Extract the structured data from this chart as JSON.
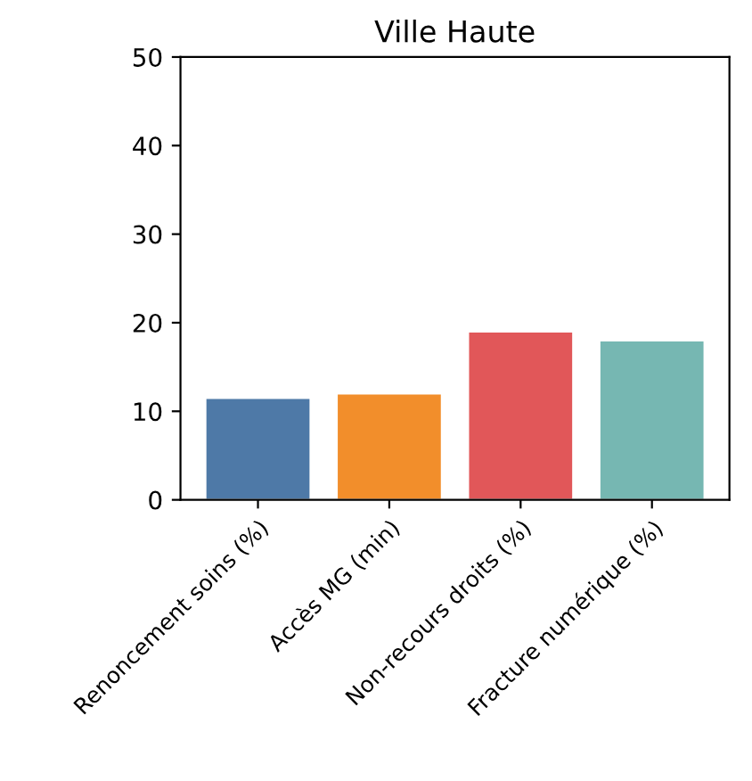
{
  "chart_data": {
    "type": "bar",
    "title": "Ville Haute",
    "categories": [
      "Renoncement soins (%)",
      "Accès MG (min)",
      "Non-recours droits (%)",
      "Fracture numérique (%)"
    ],
    "values": [
      11.5,
      12,
      19,
      18
    ],
    "colors": [
      "#4e79a7",
      "#f28e2b",
      "#e15759",
      "#76b7b2"
    ],
    "ylim": [
      0,
      50
    ],
    "yticks": [
      0,
      10,
      20,
      30,
      40,
      50
    ],
    "grid": false,
    "legend": false
  }
}
